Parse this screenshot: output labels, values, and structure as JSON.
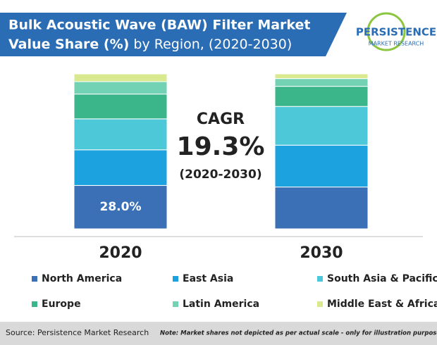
{
  "chart_data": {
    "type": "stacked-bar",
    "title_line1": "Bulk Acoustic Wave (BAW) Filter Market",
    "title_line2_bold": "Value Share (%)",
    "title_line2_rest": "by Region, (2020-2030)",
    "categories": [
      "2020",
      "2030"
    ],
    "series": [
      {
        "name": "North America",
        "color": "#3b6fb6",
        "values": [
          28,
          27
        ],
        "value_labels": [
          "28.0%",
          null
        ]
      },
      {
        "name": "East Asia",
        "color": "#1ca2df",
        "values": [
          23,
          27
        ]
      },
      {
        "name": "South Asia & Pacific",
        "color": "#4cc8d9",
        "values": [
          20,
          25
        ]
      },
      {
        "name": "Europe",
        "color": "#3bb68a",
        "values": [
          16,
          13
        ]
      },
      {
        "name": "Latin America",
        "color": "#72d2b3",
        "values": [
          8,
          5
        ]
      },
      {
        "name": "Middle East & Africa",
        "color": "#d9e98f",
        "values": [
          5,
          3
        ]
      }
    ],
    "annotations": {
      "cagr_label": "CAGR",
      "cagr_value": "19.3%",
      "cagr_period": "(2020-2030)"
    }
  },
  "logo": {
    "name": "PERSISTENCE",
    "tagline": "MARKET RESEARCH"
  },
  "footer": {
    "source": "Source: Persistence Market Research",
    "note": "Note: Market shares not depicted as per actual scale - only for illustration purposes"
  }
}
